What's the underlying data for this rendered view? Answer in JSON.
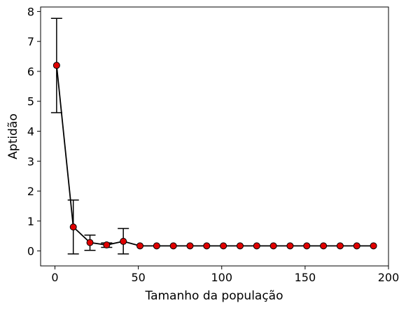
{
  "chart_data": {
    "type": "line",
    "title": "",
    "xlabel": "Tamanho da população",
    "ylabel": "Aptidão",
    "xlim": [
      -8.6,
      200
    ],
    "ylim": [
      -0.5,
      8.15
    ],
    "xticks": [
      0,
      50,
      100,
      150,
      200
    ],
    "yticks": [
      0,
      1,
      2,
      3,
      4,
      5,
      6,
      7,
      8
    ],
    "grid": false,
    "legend": null,
    "series": [
      {
        "name": "Aptidão",
        "line_color": "#000000",
        "marker_color": "#e00000",
        "x": [
          1,
          11,
          21,
          31,
          41,
          51,
          61,
          71,
          81,
          91,
          101,
          111,
          121,
          131,
          141,
          151,
          161,
          171,
          181,
          191
        ],
        "y": [
          6.2,
          0.8,
          0.28,
          0.2,
          0.32,
          0.17,
          0.17,
          0.17,
          0.17,
          0.17,
          0.17,
          0.17,
          0.17,
          0.17,
          0.17,
          0.17,
          0.17,
          0.17,
          0.17,
          0.17
        ],
        "error_low": [
          4.62,
          -0.1,
          0.02,
          0.12,
          -0.1,
          0.17,
          0.17,
          0.17,
          0.17,
          0.17,
          0.17,
          0.17,
          0.17,
          0.17,
          0.17,
          0.17,
          0.17,
          0.17,
          0.17,
          0.17
        ],
        "error_high": [
          7.77,
          1.7,
          0.53,
          0.27,
          0.75,
          0.17,
          0.17,
          0.17,
          0.17,
          0.17,
          0.17,
          0.17,
          0.17,
          0.17,
          0.17,
          0.17,
          0.17,
          0.17,
          0.17,
          0.17
        ]
      }
    ]
  }
}
